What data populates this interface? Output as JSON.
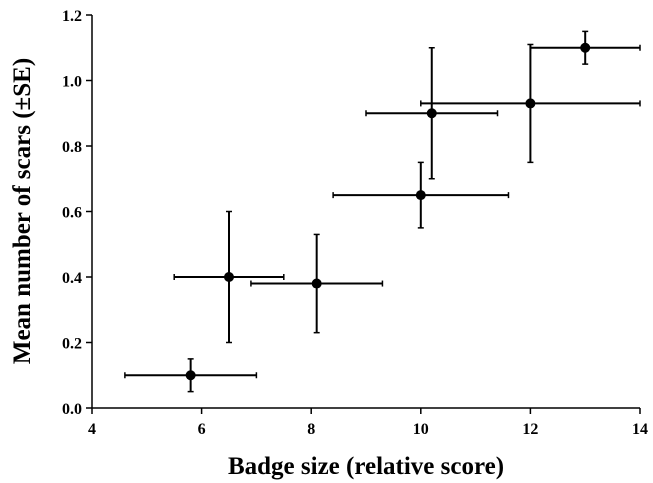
{
  "chart_data": {
    "type": "scatter",
    "xlabel": "Badge size (relative score)",
    "ylabel": "Mean number of scars (±SE)",
    "xlim": [
      4,
      14
    ],
    "ylim": [
      0,
      1.2
    ],
    "x_ticks": [
      "4",
      "6",
      "8",
      "10",
      "12",
      "14"
    ],
    "y_ticks": [
      "0.0",
      "0.2",
      "0.4",
      "0.6",
      "0.8",
      "1.0",
      "1.2"
    ],
    "grid": false,
    "marker_color": "#000000",
    "points": [
      {
        "x": 5.8,
        "y": 0.1,
        "x_err": [
          4.6,
          7.0
        ],
        "y_err": [
          0.05,
          0.15
        ]
      },
      {
        "x": 6.5,
        "y": 0.4,
        "x_err": [
          5.5,
          7.5
        ],
        "y_err": [
          0.2,
          0.6
        ]
      },
      {
        "x": 8.1,
        "y": 0.38,
        "x_err": [
          6.9,
          9.3
        ],
        "y_err": [
          0.23,
          0.53
        ]
      },
      {
        "x": 10.0,
        "y": 0.65,
        "x_err": [
          8.4,
          11.6
        ],
        "y_err": [
          0.55,
          0.75
        ]
      },
      {
        "x": 10.2,
        "y": 0.9,
        "x_err": [
          9.0,
          11.4
        ],
        "y_err": [
          0.7,
          1.1
        ]
      },
      {
        "x": 12.0,
        "y": 0.93,
        "x_err": [
          10.0,
          14.0
        ],
        "y_err": [
          0.75,
          1.11
        ]
      },
      {
        "x": 13.0,
        "y": 1.1,
        "x_err": [
          12.0,
          14.0
        ],
        "y_err": [
          1.05,
          1.15
        ]
      }
    ]
  }
}
